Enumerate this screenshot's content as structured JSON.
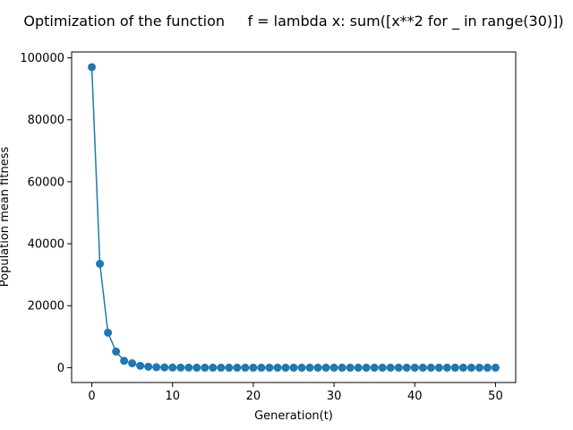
{
  "chart_data": {
    "type": "line",
    "title": "Optimization of the function     f = lambda x: sum([x**2 for _ in range(30)])",
    "xlabel": "Generation(t)",
    "ylabel": "Population mean fitness",
    "xlim": [
      -2.5,
      52.5
    ],
    "ylim": [
      -4800,
      101900
    ],
    "x_ticks": [
      0,
      10,
      20,
      30,
      40,
      50
    ],
    "y_ticks": [
      0,
      20000,
      40000,
      60000,
      80000,
      100000
    ],
    "grid": false,
    "marker": "circle",
    "color": "#1f77b4",
    "series": [
      {
        "x": [
          0,
          1,
          2,
          3,
          4,
          5,
          6,
          7,
          8,
          9,
          10,
          11,
          12,
          13,
          14,
          15,
          16,
          17,
          18,
          19,
          20,
          21,
          22,
          23,
          24,
          25,
          26,
          27,
          28,
          29,
          30,
          31,
          32,
          33,
          34,
          35,
          36,
          37,
          38,
          39,
          40,
          41,
          42,
          43,
          44,
          45,
          46,
          47,
          48,
          49,
          50
        ],
        "values": [
          97000,
          33500,
          11300,
          5200,
          2200,
          1400,
          600,
          300,
          150,
          80,
          40,
          20,
          10,
          5,
          3,
          2,
          1,
          1,
          0,
          0,
          0,
          0,
          0,
          0,
          0,
          0,
          0,
          0,
          0,
          0,
          0,
          0,
          0,
          0,
          0,
          0,
          0,
          0,
          0,
          0,
          0,
          0,
          0,
          0,
          0,
          0,
          0,
          0,
          0,
          0,
          0
        ]
      }
    ]
  }
}
